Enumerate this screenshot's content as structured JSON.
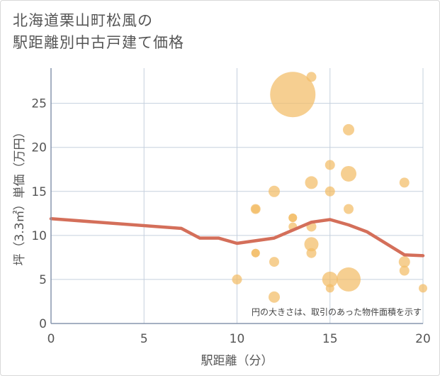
{
  "title_lines": [
    "北海道栗山町松風の",
    "駅距離別中古戸建て価格"
  ],
  "chart_data": {
    "type": "scatter",
    "title": "北海道栗山町松風の駅距離別中古戸建て価格",
    "xlabel": "駅距離（分）",
    "ylabel": "坪（3.3㎡）単価（万円）",
    "xlim": [
      0,
      20
    ],
    "ylim": [
      0,
      29
    ],
    "x_ticks": [
      0,
      5,
      10,
      15,
      20
    ],
    "y_ticks": [
      0,
      5,
      10,
      15,
      20,
      25
    ],
    "grid": true,
    "annotation": "円の大きさは、取引のあった物件面積を示す",
    "colors": {
      "bubble": "#f3bd66",
      "line": "#d46f5a",
      "grid": "#c5d0de",
      "axis": "#8796ad"
    },
    "bubbles": [
      {
        "x": 13,
        "y": 26,
        "size": 32
      },
      {
        "x": 14,
        "y": 28,
        "size": 7
      },
      {
        "x": 16,
        "y": 22,
        "size": 8
      },
      {
        "x": 15,
        "y": 18,
        "size": 7
      },
      {
        "x": 14,
        "y": 16,
        "size": 9
      },
      {
        "x": 16,
        "y": 17,
        "size": 11
      },
      {
        "x": 12,
        "y": 15,
        "size": 8
      },
      {
        "x": 15,
        "y": 15,
        "size": 7
      },
      {
        "x": 19,
        "y": 16,
        "size": 7
      },
      {
        "x": 11,
        "y": 13,
        "size": 7
      },
      {
        "x": 11,
        "y": 13,
        "size": 6
      },
      {
        "x": 13,
        "y": 12,
        "size": 6
      },
      {
        "x": 13,
        "y": 12,
        "size": 6
      },
      {
        "x": 16,
        "y": 13,
        "size": 7
      },
      {
        "x": 14,
        "y": 11,
        "size": 7
      },
      {
        "x": 13,
        "y": 11,
        "size": 6
      },
      {
        "x": 14,
        "y": 9,
        "size": 10
      },
      {
        "x": 14,
        "y": 8,
        "size": 7
      },
      {
        "x": 11,
        "y": 8,
        "size": 6
      },
      {
        "x": 11,
        "y": 8,
        "size": 6
      },
      {
        "x": 12,
        "y": 7,
        "size": 7
      },
      {
        "x": 19,
        "y": 7,
        "size": 8
      },
      {
        "x": 19,
        "y": 6,
        "size": 7
      },
      {
        "x": 10,
        "y": 5,
        "size": 7
      },
      {
        "x": 15,
        "y": 5,
        "size": 11
      },
      {
        "x": 16,
        "y": 5,
        "size": 17
      },
      {
        "x": 15,
        "y": 4,
        "size": 6
      },
      {
        "x": 20,
        "y": 4,
        "size": 6
      },
      {
        "x": 12,
        "y": 3,
        "size": 8
      }
    ],
    "trend_line": [
      {
        "x": 0,
        "y": 11.9
      },
      {
        "x": 7,
        "y": 10.8
      },
      {
        "x": 8,
        "y": 9.7
      },
      {
        "x": 9,
        "y": 9.7
      },
      {
        "x": 10,
        "y": 9.1
      },
      {
        "x": 12,
        "y": 9.7
      },
      {
        "x": 14,
        "y": 11.5
      },
      {
        "x": 15,
        "y": 11.8
      },
      {
        "x": 16,
        "y": 11.2
      },
      {
        "x": 17,
        "y": 10.4
      },
      {
        "x": 19,
        "y": 7.8
      },
      {
        "x": 20,
        "y": 7.7
      }
    ]
  }
}
